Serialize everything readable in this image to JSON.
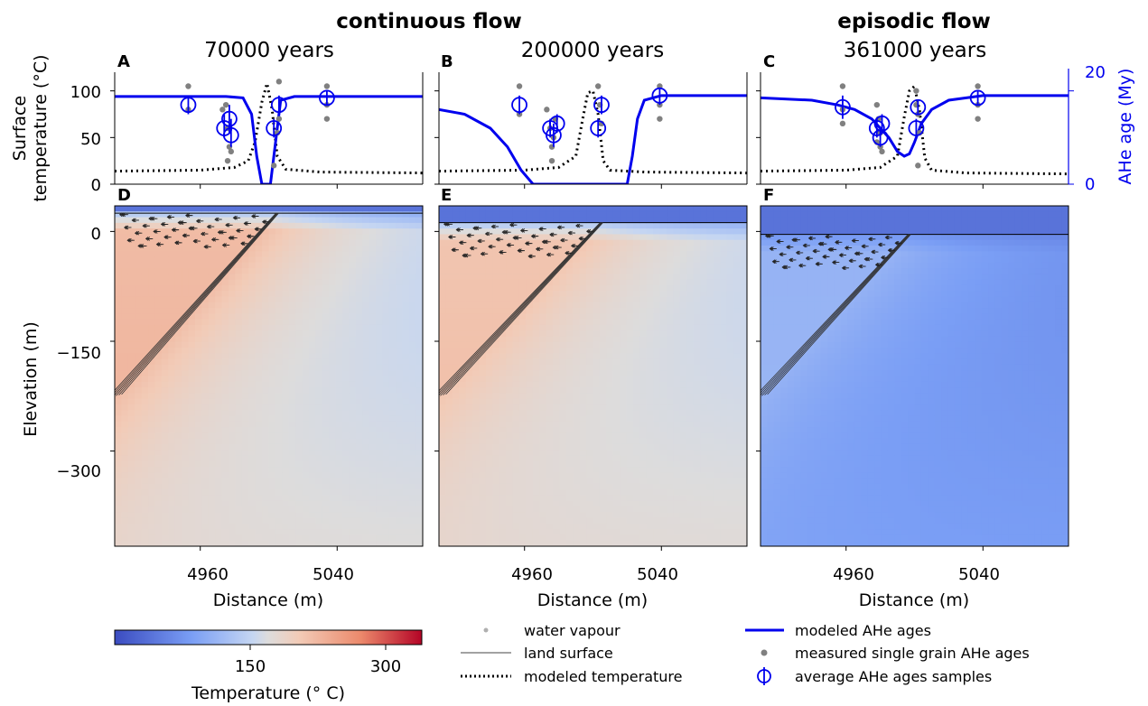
{
  "headings": {
    "continuous": "continuous flow",
    "episodic": "episodic flow"
  },
  "panels": [
    {
      "letter": "A",
      "title": "70000 years"
    },
    {
      "letter": "B",
      "title": "200000 years"
    },
    {
      "letter": "C",
      "title": "361000 years"
    },
    {
      "letter": "D"
    },
    {
      "letter": "E"
    },
    {
      "letter": "F"
    }
  ],
  "axes": {
    "top_ylabel_line1": "Surface",
    "top_ylabel_line2": "temperature (°C)",
    "top_yticks": [
      "100",
      "50",
      "0"
    ],
    "age_ylabel": "AHe age (My)",
    "age_yticks": [
      "20",
      "0"
    ],
    "bottom_ylabel": "Elevation (m)",
    "bottom_yticks": [
      "0",
      "−150",
      "−300"
    ],
    "xticks": [
      "4960",
      "5040"
    ],
    "xlabel": "Distance (m)"
  },
  "colorbar": {
    "label": "Temperature (° C)",
    "ticks": [
      "150",
      "300"
    ],
    "vmin": 0,
    "vmax": 340
  },
  "legend": {
    "water_vapour": "water vapour",
    "land_surface": "land surface",
    "modeled_temperature": "modeled temperature",
    "modeled_ahe": "modeled AHe ages",
    "measured": "measured single grain AHe ages",
    "average": "average AHe ages samples"
  },
  "colors": {
    "age": "#0000ee",
    "measured": "#808080",
    "surface": "#000000"
  },
  "chart_data": [
    {
      "type": "line",
      "panel": "A",
      "xlim": [
        4910,
        5090
      ],
      "ylim": [
        0,
        120
      ],
      "age_ylim": [
        0,
        24
      ],
      "series": [
        {
          "name": "modeled temperature",
          "x": [
            4910,
            4960,
            4980,
            4988,
            4992,
            4996,
            4999,
            5002,
            5005,
            5010,
            5030,
            5090
          ],
          "y": [
            14,
            15,
            18,
            25,
            45,
            88,
            108,
            80,
            30,
            16,
            13,
            12
          ]
        },
        {
          "name": "modeled AHe ages",
          "x": [
            4910,
            4975,
            4985,
            4990,
            4993,
            4996,
            5001,
            5004,
            5007,
            5015,
            5090
          ],
          "age": [
            18.8,
            18.8,
            18.5,
            15,
            6,
            0,
            0,
            9,
            18,
            18.8,
            18.8
          ]
        }
      ],
      "measured": [
        [
          4953,
          21
        ],
        [
          4953,
          16
        ],
        [
          4973,
          16
        ],
        [
          4976,
          12
        ],
        [
          4977,
          8
        ],
        [
          4976,
          5
        ],
        [
          4975,
          17
        ],
        [
          4978,
          7
        ],
        [
          5003,
          4
        ],
        [
          5006,
          22
        ],
        [
          5006,
          14
        ],
        [
          5005,
          11
        ],
        [
          5034,
          21
        ],
        [
          5034,
          17
        ],
        [
          5034,
          14
        ]
      ],
      "averages": [
        {
          "x": 4953,
          "age": 17,
          "lo": 15,
          "hi": 19
        },
        {
          "x": 4974,
          "age": 12,
          "lo": 10,
          "hi": 15
        },
        {
          "x": 4977,
          "age": 14,
          "lo": 11,
          "hi": 17
        },
        {
          "x": 4978,
          "age": 10.5,
          "lo": 8,
          "hi": 14
        },
        {
          "x": 5003,
          "age": 12,
          "lo": 10,
          "hi": 14
        },
        {
          "x": 5006,
          "age": 17,
          "lo": 15,
          "hi": 19
        },
        {
          "x": 5034,
          "age": 18.5,
          "lo": 17,
          "hi": 20
        }
      ]
    },
    {
      "type": "line",
      "panel": "B",
      "xlim": [
        4910,
        5090
      ],
      "ylim": [
        0,
        120
      ],
      "age_ylim": [
        0,
        24
      ],
      "series": [
        {
          "name": "modeled temperature",
          "x": [
            4910,
            4960,
            4980,
            4990,
            4994,
            4997,
            5000,
            5003,
            5006,
            5010,
            5030,
            5090
          ],
          "y": [
            14,
            15,
            18,
            30,
            70,
            98,
            100,
            75,
            25,
            15,
            13,
            12
          ]
        },
        {
          "name": "modeled AHe ages",
          "x": [
            4910,
            4925,
            4940,
            4950,
            4958,
            4965,
            5020,
            5023,
            5026,
            5030,
            5040,
            5090
          ],
          "age": [
            16,
            15,
            12,
            8,
            3,
            0,
            0,
            6,
            14,
            18,
            19,
            19
          ]
        }
      ],
      "measured": [
        [
          4957,
          21
        ],
        [
          4957,
          15
        ],
        [
          4973,
          16
        ],
        [
          4975,
          12
        ],
        [
          4976,
          8
        ],
        [
          4976,
          5
        ],
        [
          4977,
          10
        ],
        [
          4978,
          14
        ],
        [
          5003,
          21
        ],
        [
          5004,
          17
        ],
        [
          5005,
          13
        ],
        [
          5039,
          21
        ],
        [
          5039,
          17
        ],
        [
          5039,
          14
        ]
      ],
      "averages": [
        {
          "x": 4957,
          "age": 17,
          "lo": 15,
          "hi": 19
        },
        {
          "x": 4975,
          "age": 12,
          "lo": 10,
          "hi": 14
        },
        {
          "x": 4977,
          "age": 10.5,
          "lo": 8,
          "hi": 13
        },
        {
          "x": 4979,
          "age": 13,
          "lo": 11,
          "hi": 15
        },
        {
          "x": 5003,
          "age": 12,
          "lo": 10,
          "hi": 14
        },
        {
          "x": 5005,
          "age": 17,
          "lo": 15,
          "hi": 19
        },
        {
          "x": 5039,
          "age": 19,
          "lo": 17,
          "hi": 20.5
        }
      ]
    },
    {
      "type": "line",
      "panel": "C",
      "xlim": [
        4910,
        5090
      ],
      "ylim": [
        0,
        120
      ],
      "age_ylim": [
        0,
        24
      ],
      "series": [
        {
          "name": "modeled temperature",
          "x": [
            4910,
            4960,
            4980,
            4990,
            4994,
            4997,
            5000,
            5003,
            5006,
            5010,
            5030,
            5090
          ],
          "y": [
            14,
            15,
            18,
            30,
            72,
            100,
            105,
            78,
            28,
            15,
            12,
            11
          ]
        },
        {
          "name": "modeled AHe ages",
          "x": [
            4910,
            4940,
            4955,
            4965,
            4975,
            4985,
            4990,
            4994,
            4997,
            5000,
            5004,
            5010,
            5020,
            5040,
            5090
          ],
          "age": [
            18.5,
            18,
            17,
            16,
            14,
            10,
            7,
            6,
            6.5,
            9,
            13,
            16,
            18,
            19,
            19
          ]
        }
      ],
      "measured": [
        [
          4958,
          21
        ],
        [
          4958,
          16
        ],
        [
          4958,
          13
        ],
        [
          4978,
          17
        ],
        [
          4979,
          14
        ],
        [
          4980,
          11
        ],
        [
          4978,
          9
        ],
        [
          4980,
          8
        ],
        [
          4981,
          7
        ],
        [
          5001,
          20
        ],
        [
          5001,
          17
        ],
        [
          5002,
          15
        ],
        [
          5003,
          11
        ],
        [
          5002,
          4
        ],
        [
          5037,
          21
        ],
        [
          5037,
          17
        ],
        [
          5037,
          14
        ]
      ],
      "averages": [
        {
          "x": 4958,
          "age": 16.5,
          "lo": 14,
          "hi": 19
        },
        {
          "x": 4978,
          "age": 12,
          "lo": 10,
          "hi": 14
        },
        {
          "x": 4980,
          "age": 10,
          "lo": 8,
          "hi": 12
        },
        {
          "x": 4981,
          "age": 13,
          "lo": 11,
          "hi": 15
        },
        {
          "x": 5001,
          "age": 12,
          "lo": 10,
          "hi": 14
        },
        {
          "x": 5002,
          "age": 16.5,
          "lo": 15,
          "hi": 18
        },
        {
          "x": 5037,
          "age": 18.5,
          "lo": 17,
          "hi": 20
        }
      ]
    },
    {
      "type": "heatmap",
      "panel": "D",
      "xlim": [
        4910,
        5090
      ],
      "ylim": [
        -430,
        35
      ],
      "surface_y": 25,
      "fault": {
        "x": [
          4910,
          5005
        ],
        "y": [
          -225,
          25
        ]
      },
      "field": {
        "top": 40,
        "near_fault": 220,
        "far": 135,
        "deep": 170
      }
    },
    {
      "type": "heatmap",
      "panel": "E",
      "xlim": [
        4910,
        5090
      ],
      "ylim": [
        -430,
        35
      ],
      "surface_y": 12,
      "fault": {
        "x": [
          4910,
          5005
        ],
        "y": [
          -225,
          12
        ]
      },
      "field": {
        "top": 40,
        "near_fault": 210,
        "far": 140,
        "deep": 175
      }
    },
    {
      "type": "heatmap",
      "panel": "F",
      "xlim": [
        4910,
        5090
      ],
      "ylim": [
        -430,
        35
      ],
      "surface_y": -4,
      "fault": {
        "x": [
          4910,
          4997
        ],
        "y": [
          -225,
          -4
        ]
      },
      "field": {
        "top": 40,
        "near_fault": 110,
        "far": 65,
        "deep": 85
      }
    }
  ]
}
